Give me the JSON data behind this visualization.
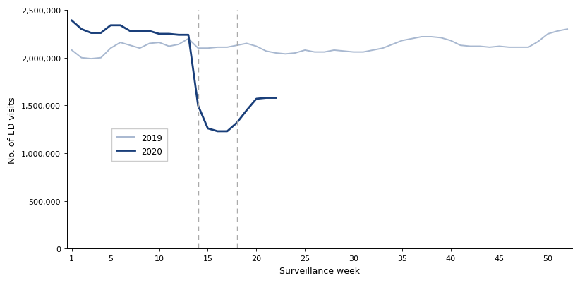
{
  "weeks_2019": [
    1,
    2,
    3,
    4,
    5,
    6,
    7,
    8,
    9,
    10,
    11,
    12,
    13,
    14,
    15,
    16,
    17,
    18,
    19,
    20,
    21,
    22,
    23,
    24,
    25,
    26,
    27,
    28,
    29,
    30,
    31,
    32,
    33,
    34,
    35,
    36,
    37,
    38,
    39,
    40,
    41,
    42,
    43,
    44,
    45,
    46,
    47,
    48,
    49,
    50,
    51,
    52
  ],
  "values_2019": [
    2080000,
    2000000,
    1990000,
    2000000,
    2100000,
    2160000,
    2130000,
    2100000,
    2150000,
    2160000,
    2120000,
    2140000,
    2200000,
    2100000,
    2100000,
    2110000,
    2110000,
    2130000,
    2150000,
    2120000,
    2070000,
    2050000,
    2040000,
    2050000,
    2080000,
    2060000,
    2060000,
    2080000,
    2070000,
    2060000,
    2060000,
    2080000,
    2100000,
    2140000,
    2180000,
    2200000,
    2220000,
    2220000,
    2210000,
    2180000,
    2130000,
    2120000,
    2120000,
    2110000,
    2120000,
    2110000,
    2110000,
    2110000,
    2170000,
    2250000,
    2280000,
    2300000
  ],
  "weeks_2020": [
    1,
    2,
    3,
    4,
    5,
    6,
    7,
    8,
    9,
    10,
    11,
    12,
    13,
    14,
    15,
    16,
    17,
    18,
    19,
    20,
    21,
    22
  ],
  "values_2020": [
    2390000,
    2300000,
    2260000,
    2260000,
    2340000,
    2340000,
    2280000,
    2280000,
    2280000,
    2250000,
    2250000,
    2240000,
    2240000,
    1500000,
    1260000,
    1230000,
    1230000,
    1320000,
    1450000,
    1570000,
    1580000,
    1580000
  ],
  "color_2019": "#a8b8d0",
  "color_2020": "#1a3f7a",
  "vline_x1": 14,
  "vline_x2": 18,
  "vline_color": "#aaaaaa",
  "ylabel": "No. of ED visits",
  "xlabel": "Surveillance week",
  "ylim": [
    0,
    2500000
  ],
  "yticks": [
    0,
    500000,
    1000000,
    1500000,
    2000000,
    2500000
  ],
  "xticks": [
    1,
    5,
    10,
    15,
    20,
    25,
    30,
    35,
    40,
    45,
    50
  ],
  "legend_labels": [
    "2019",
    "2020"
  ],
  "figsize": [
    8.22,
    4.02
  ],
  "dpi": 100
}
